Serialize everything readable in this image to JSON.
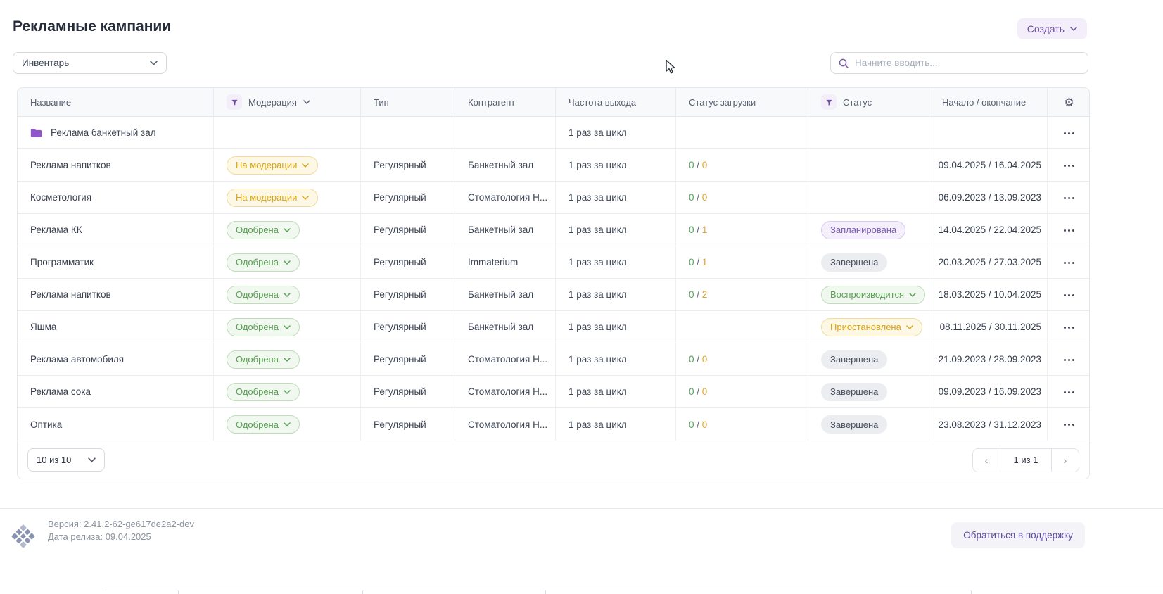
{
  "header": {
    "title": "Рекламные кампании",
    "create_label": "Создать"
  },
  "filters": {
    "inventory_label": "Инвентарь",
    "search_placeholder": "Начните вводить..."
  },
  "table": {
    "columns": [
      {
        "key": "name",
        "label": "Название"
      },
      {
        "key": "moderation",
        "label": "Модерация",
        "filter": true,
        "chevron": true
      },
      {
        "key": "type",
        "label": "Тип"
      },
      {
        "key": "counterparty",
        "label": "Контрагент"
      },
      {
        "key": "frequency",
        "label": "Частота выхода"
      },
      {
        "key": "load-status",
        "label": "Статус загрузки"
      },
      {
        "key": "status",
        "label": "Статус",
        "filter": true
      },
      {
        "key": "dates",
        "label": "Начало / окончание"
      },
      {
        "key": "settings",
        "label": "",
        "gear": true
      }
    ],
    "rows": [
      {
        "name": "Реклама банкетный зал",
        "folder": true,
        "frequency": "1 раз за цикл"
      },
      {
        "name": "Реклама напитков",
        "moderation": {
          "label": "На модерации",
          "variant": "yellow",
          "chevron": true
        },
        "type": "Регулярный",
        "counterparty": "Банкетный зал",
        "frequency": "1 раз за цикл",
        "load": {
          "done": "0",
          "total": "0"
        },
        "dates": "09.04.2025 / 16.04.2025"
      },
      {
        "name": "Косметология",
        "moderation": {
          "label": "На модерации",
          "variant": "yellow",
          "chevron": true
        },
        "type": "Регулярный",
        "counterparty": "Стоматология Н...",
        "frequency": "1 раз за цикл",
        "load": {
          "done": "0",
          "total": "0"
        },
        "dates": "06.09.2023 / 13.09.2023"
      },
      {
        "name": "Реклама КК",
        "moderation": {
          "label": "Одобрена",
          "variant": "green",
          "chevron": true
        },
        "type": "Регулярный",
        "counterparty": "Банкетный зал",
        "frequency": "1 раз за цикл",
        "load": {
          "done": "0",
          "total": "1"
        },
        "status": {
          "label": "Запланирована",
          "variant": "purple"
        },
        "dates": "14.04.2025 / 22.04.2025"
      },
      {
        "name": "Программатик",
        "moderation": {
          "label": "Одобрена",
          "variant": "green",
          "chevron": true
        },
        "type": "Регулярный",
        "counterparty": "Immaterium",
        "frequency": "1 раз за цикл",
        "load": {
          "done": "0",
          "total": "1"
        },
        "status": {
          "label": "Завершена",
          "variant": "gray"
        },
        "dates": "20.03.2025 / 27.03.2025"
      },
      {
        "name": "Реклама напитков",
        "moderation": {
          "label": "Одобрена",
          "variant": "green",
          "chevron": true
        },
        "type": "Регулярный",
        "counterparty": "Банкетный зал",
        "frequency": "1 раз за цикл",
        "load": {
          "done": "0",
          "total": "2"
        },
        "status": {
          "label": "Воспроизводится",
          "variant": "green",
          "chevron": true
        },
        "dates": "18.03.2025 / 10.04.2025"
      },
      {
        "name": "Яшма",
        "moderation": {
          "label": "Одобрена",
          "variant": "green",
          "chevron": true
        },
        "type": "Регулярный",
        "counterparty": "Банкетный зал",
        "frequency": "1 раз за цикл",
        "status": {
          "label": "Приостановлена",
          "variant": "yellow",
          "chevron": true
        },
        "dates": "08.11.2025 / 30.11.2025"
      },
      {
        "name": "Реклама автомобиля",
        "moderation": {
          "label": "Одобрена",
          "variant": "green",
          "chevron": true
        },
        "type": "Регулярный",
        "counterparty": "Стоматология Н...",
        "frequency": "1 раз за цикл",
        "load": {
          "done": "0",
          "total": "0"
        },
        "status": {
          "label": "Завершена",
          "variant": "gray"
        },
        "dates": "21.09.2023 / 28.09.2023"
      },
      {
        "name": "Реклама сока",
        "moderation": {
          "label": "Одобрена",
          "variant": "green",
          "chevron": true
        },
        "type": "Регулярный",
        "counterparty": "Стоматология Н...",
        "frequency": "1 раз за цикл",
        "load": {
          "done": "0",
          "total": "0"
        },
        "status": {
          "label": "Завершена",
          "variant": "gray"
        },
        "dates": "09.09.2023 / 16.09.2023"
      },
      {
        "name": "Оптика",
        "moderation": {
          "label": "Одобрена",
          "variant": "green",
          "chevron": true
        },
        "type": "Регулярный",
        "counterparty": "Стоматология Н...",
        "frequency": "1 раз за цикл",
        "load": {
          "done": "0",
          "total": "0"
        },
        "status": {
          "label": "Завершена",
          "variant": "gray"
        },
        "dates": "23.08.2023 / 31.12.2023"
      }
    ]
  },
  "pagination": {
    "page_size": "10 из 10",
    "page_indicator": "1 из 1",
    "prev": "‹",
    "next": "›"
  },
  "footer": {
    "version": "Версия: 2.41.2-62-ge617de2a2-dev",
    "release_date": "Дата релиза: 09.04.2025",
    "support_label": "Обратиться в поддержку"
  },
  "colors": {
    "accent": "#6d4fa1",
    "accent_soft": "#f3eef9",
    "green": "#55a05a",
    "orange": "#dfa32f",
    "badge_yellow_text": "#d7a412",
    "badge_yellow_bg": "#fdf8e5",
    "badge_yellow_border": "#f1dc9d",
    "badge_green_text": "#57a052",
    "badge_green_bg": "#f1f8ef",
    "badge_green_border": "#bedcb8",
    "badge_purple_text": "#7a5cb8",
    "badge_purple_bg": "#f4effb",
    "badge_purple_border": "#d9c9ef",
    "badge_gray_text": "#4a5160",
    "badge_gray_bg": "#ebedf0"
  }
}
